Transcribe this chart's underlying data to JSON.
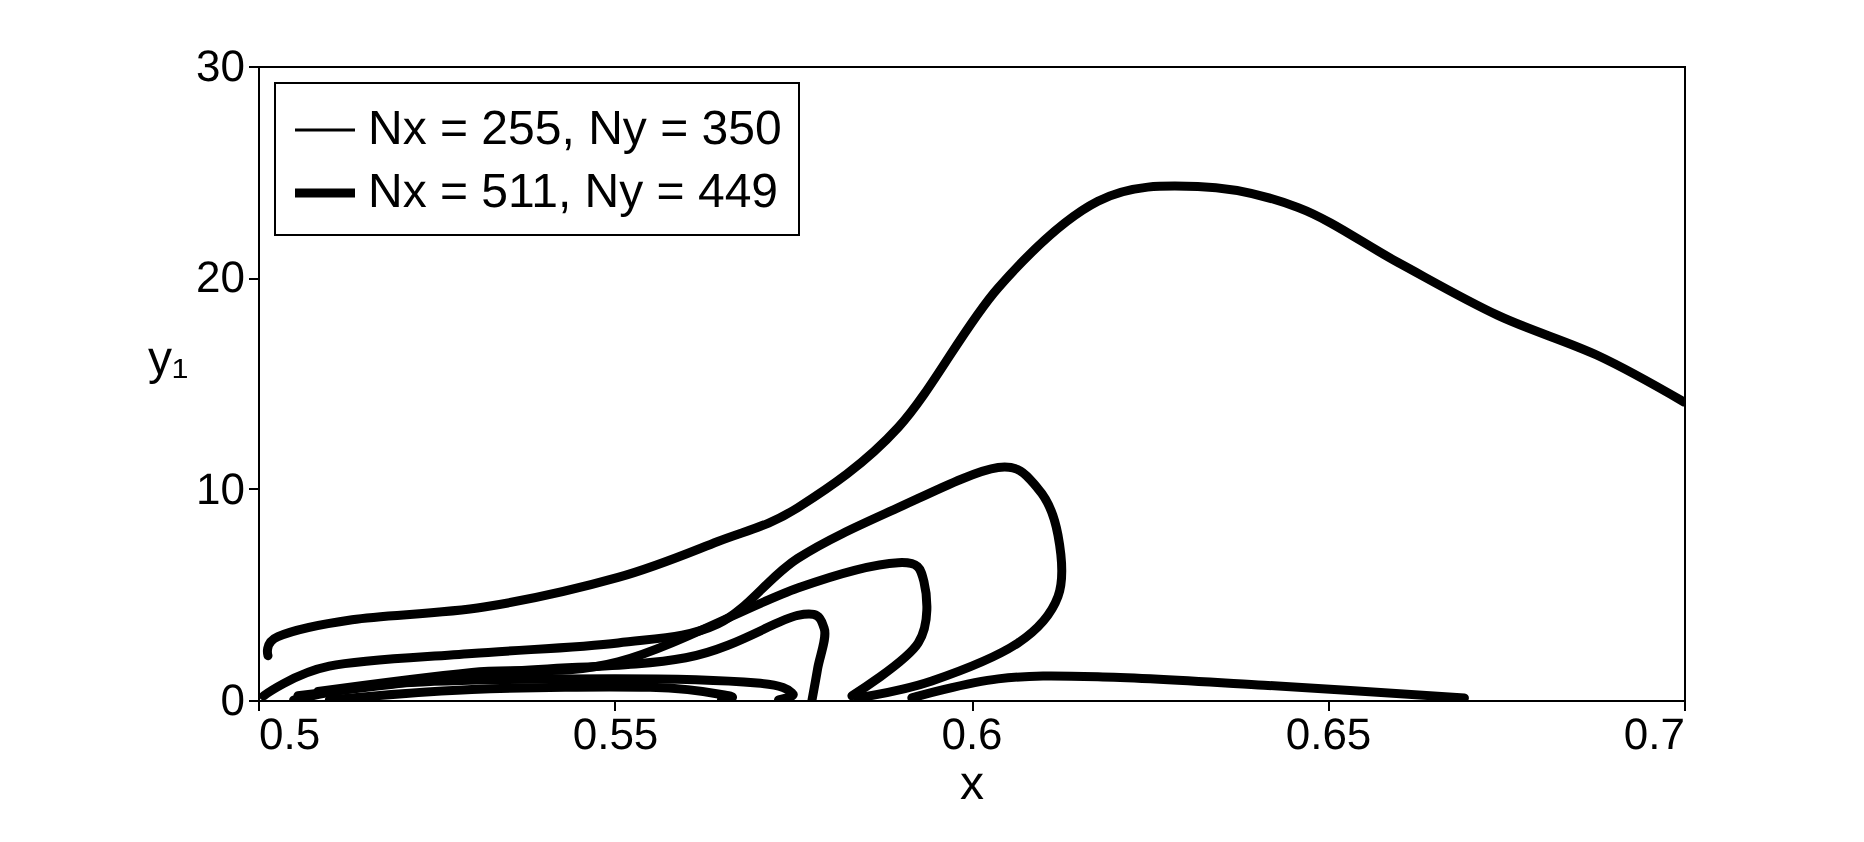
{
  "chart_data": {
    "type": "line",
    "xlabel": "x",
    "ylabel": "y₁",
    "xlim": [
      0.5,
      0.7
    ],
    "xticks": [
      0.5,
      0.55,
      0.6,
      0.65,
      0.7
    ],
    "ylim": [
      0,
      30
    ],
    "yticks": [
      0,
      10,
      20,
      30
    ],
    "grid": false,
    "legend": "top left",
    "marker": "none",
    "line_style": "solid",
    "series": [
      {
        "name": "Nx = 255, Ny = 350",
        "color": "#000000",
        "values": [
          null
        ]
      },
      {
        "name": "Nx = 511, Ny = 449",
        "color": "#000000",
        "x": [
          0.5014,
          0.5028,
          0.5132,
          0.5317,
          0.5505,
          0.5645,
          0.5757,
          0.5898,
          0.6038,
          0.6178,
          0.6318,
          0.6459,
          0.6599,
          0.6739,
          0.6879,
          0.7
        ],
        "values": [
          2.1,
          3.0,
          3.8,
          4.4,
          5.8,
          7.5,
          9.1,
          12.9,
          19.5,
          23.6,
          24.3,
          23.3,
          20.7,
          18.2,
          16.3,
          14.1
        ]
      },
      {
        "color": "#000000",
        "x": [
          0.5008,
          0.51,
          0.53,
          0.5505,
          0.5645,
          0.5757,
          0.5898,
          0.6038,
          0.6094,
          0.6122,
          0.6122,
          0.6066,
          0.5945,
          0.5841
        ],
        "values": [
          0.2,
          1.6,
          2.2,
          2.7,
          3.6,
          6.7,
          9.1,
          11.0,
          10.0,
          7.8,
          4.9,
          2.7,
          0.9,
          0.1
        ]
      },
      {
        "color": "#000000",
        "x": [
          0.5084,
          0.53,
          0.5505,
          0.5757,
          0.5898,
          0.5934,
          0.5926,
          0.5833
        ],
        "values": [
          0.4,
          1.3,
          1.8,
          5.3,
          6.5,
          5.6,
          2.7,
          0.2
        ]
      },
      {
        "color": "#000000",
        "x": [
          0.5056,
          0.5337,
          0.56,
          0.5757,
          0.5794,
          0.5785,
          0.5777
        ],
        "values": [
          0.2,
          1.3,
          2.0,
          4.0,
          3.4,
          1.5,
          0.0
        ]
      },
      {
        "color": "#000000",
        "x": [
          0.505,
          0.52,
          0.55,
          0.57,
          0.575,
          0.573
        ],
        "values": [
          0.0,
          0.8,
          1.0,
          0.8,
          0.3,
          0.0
        ]
      },
      {
        "color": "#000000",
        "x": [
          0.51,
          0.53,
          0.555,
          0.566,
          0.565
        ],
        "values": [
          0.0,
          0.5,
          0.6,
          0.2,
          0.0
        ]
      },
      {
        "color": "#000000",
        "x": [
          0.5917,
          0.6038,
          0.6178,
          0.6411,
          0.6692
        ],
        "values": [
          0.1,
          1.0,
          1.1,
          0.7,
          0.1
        ]
      }
    ]
  }
}
